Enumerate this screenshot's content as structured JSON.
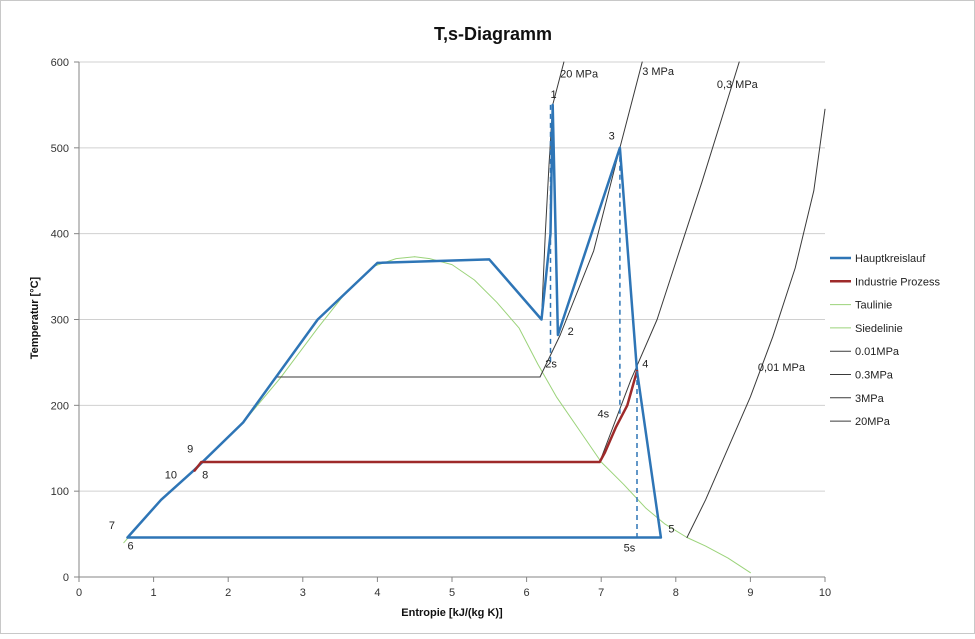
{
  "chart_data": {
    "type": "line",
    "title": "T,s-Diagramm",
    "xlabel": "Entropie [kJ/(kg K)]",
    "ylabel": "Temperatur [°C]",
    "xlim": [
      0,
      10
    ],
    "ylim": [
      0,
      600
    ],
    "xticks": [
      0,
      1,
      2,
      3,
      4,
      5,
      6,
      7,
      8,
      9,
      10
    ],
    "yticks": [
      0,
      100,
      200,
      300,
      400,
      500,
      600
    ],
    "grid": "horizontal",
    "legend_position": "right",
    "colors": {
      "hauptkreislauf": "#2e75b6",
      "industrie": "#9e2a2a",
      "sattigung": "#9bd37a",
      "isobar": "#3a3a3a",
      "isobar_navy": "#1f3f6e"
    },
    "series": [
      {
        "name": "Hauptkreislauf",
        "color": "#2e75b6",
        "width": 2.5,
        "segments": [
          [
            [
              0.65,
              46
            ],
            [
              7.8,
              46
            ],
            [
              7.48,
              240
            ],
            [
              7.25,
              500
            ],
            [
              6.42,
              282
            ],
            [
              6.35,
              550
            ],
            [
              6.32,
              400
            ],
            [
              6.2,
              300
            ],
            [
              5.5,
              370
            ],
            [
              4.0,
              366
            ],
            [
              3.2,
              300
            ],
            [
              2.2,
              180
            ],
            [
              1.55,
              125
            ],
            [
              1.1,
              90
            ],
            [
              0.65,
              46
            ]
          ]
        ]
      },
      {
        "name": "Industrie Prozess",
        "color": "#9e2a2a",
        "width": 2.5,
        "segments": [
          [
            [
              7.48,
              240
            ],
            [
              7.35,
              200
            ],
            [
              7.2,
              175
            ],
            [
              7.05,
              145
            ],
            [
              6.98,
              134
            ],
            [
              1.64,
              134
            ],
            [
              1.55,
              124
            ]
          ]
        ]
      },
      {
        "name": "Taulinie",
        "color": "#9bd37a",
        "width": 1,
        "segments": [
          [
            [
              4.5,
              373
            ],
            [
              4.7,
              371
            ],
            [
              5.0,
              364
            ],
            [
              5.3,
              346
            ],
            [
              5.6,
              320
            ],
            [
              5.9,
              290
            ],
            [
              6.15,
              248
            ],
            [
              6.4,
              210
            ],
            [
              6.7,
              172
            ],
            [
              7.0,
              134
            ],
            [
              7.3,
              108
            ],
            [
              7.6,
              80
            ],
            [
              7.85,
              62
            ],
            [
              8.15,
              46
            ],
            [
              8.4,
              36
            ],
            [
              8.7,
              22
            ],
            [
              9.0,
              5
            ]
          ]
        ]
      },
      {
        "name": "Siedelinie",
        "color": "#9bd37a",
        "width": 1,
        "segments": [
          [
            [
              0.6,
              40
            ],
            [
              1.1,
              90
            ],
            [
              1.6,
              130
            ],
            [
              2.2,
              180
            ],
            [
              2.7,
              232
            ],
            [
              3.2,
              290
            ],
            [
              3.6,
              334
            ],
            [
              3.95,
              362
            ],
            [
              4.25,
              371
            ],
            [
              4.5,
              373
            ]
          ]
        ]
      },
      {
        "name": "0.01MPa",
        "color": "#3a3a3a",
        "width": 1,
        "segments": [
          [
            [
              8.15,
              46
            ],
            [
              8.4,
              90
            ],
            [
              8.7,
              150
            ],
            [
              9.0,
              210
            ],
            [
              9.3,
              280
            ],
            [
              9.6,
              360
            ],
            [
              9.85,
              450
            ],
            [
              10.0,
              545
            ]
          ]
        ]
      },
      {
        "name": "0.3MPa",
        "color": "#3a3a3a",
        "width": 1,
        "segments": [
          [
            [
              6.98,
              134
            ],
            [
              7.4,
              230
            ],
            [
              7.75,
              300
            ],
            [
              8.05,
              380
            ],
            [
              8.35,
              460
            ],
            [
              8.6,
              530
            ],
            [
              8.85,
              600
            ]
          ]
        ]
      },
      {
        "name": "3MPa",
        "color": "#3a3a3a",
        "width": 1,
        "segments": [
          [
            [
              2.65,
              233
            ],
            [
              6.18,
              233
            ]
          ],
          [
            [
              6.18,
              233
            ],
            [
              6.45,
              282
            ],
            [
              6.9,
              380
            ],
            [
              7.25,
              500
            ],
            [
              7.55,
              600
            ]
          ]
        ]
      },
      {
        "name": "20MPa",
        "color": "#3a3a3a",
        "width": 1,
        "segments": [
          [
            [
              6.2,
              300
            ],
            [
              6.25,
              400
            ],
            [
              6.3,
              480
            ],
            [
              6.35,
              550
            ],
            [
              6.5,
              600
            ]
          ]
        ]
      }
    ],
    "dashed_lines": [
      {
        "color": "#2e75b6",
        "points": [
          [
            6.32,
            550
          ],
          [
            6.32,
            247
          ]
        ]
      },
      {
        "color": "#2e75b6",
        "points": [
          [
            7.25,
            500
          ],
          [
            7.25,
            190
          ]
        ]
      },
      {
        "color": "#2e75b6",
        "points": [
          [
            7.48,
            240
          ],
          [
            7.48,
            46
          ]
        ]
      }
    ],
    "annotations": [
      {
        "text": "1",
        "x": 6.32,
        "y": 558
      },
      {
        "text": "2",
        "x": 6.55,
        "y": 282
      },
      {
        "text": "2s",
        "x": 6.25,
        "y": 244
      },
      {
        "text": "3",
        "x": 7.1,
        "y": 510
      },
      {
        "text": "4",
        "x": 7.55,
        "y": 244
      },
      {
        "text": "4s",
        "x": 6.95,
        "y": 186
      },
      {
        "text": "5",
        "x": 7.9,
        "y": 52
      },
      {
        "text": "5s",
        "x": 7.3,
        "y": 30
      },
      {
        "text": "6",
        "x": 0.65,
        "y": 32
      },
      {
        "text": "7",
        "x": 0.4,
        "y": 56
      },
      {
        "text": "8",
        "x": 1.65,
        "y": 115
      },
      {
        "text": "9",
        "x": 1.45,
        "y": 145
      },
      {
        "text": "10",
        "x": 1.15,
        "y": 115
      },
      {
        "text": "20 MPa",
        "x": 6.45,
        "y": 582
      },
      {
        "text": "3 MPa",
        "x": 7.55,
        "y": 585
      },
      {
        "text": "0,3 MPa",
        "x": 8.55,
        "y": 570
      },
      {
        "text": "0,01 MPa",
        "x": 9.1,
        "y": 240
      }
    ],
    "legend": [
      {
        "label": "Hauptkreislauf",
        "color": "#2e75b6",
        "width": 2.5
      },
      {
        "label": "Industrie Prozess",
        "color": "#9e2a2a",
        "width": 2.5
      },
      {
        "label": "Taulinie",
        "color": "#9bd37a",
        "width": 1
      },
      {
        "label": "Siedelinie",
        "color": "#9bd37a",
        "width": 1
      },
      {
        "label": "0.01MPa",
        "color": "#3a3a3a",
        "width": 1
      },
      {
        "label": "0.3MPa",
        "color": "#3a3a3a",
        "width": 1
      },
      {
        "label": "3MPa",
        "color": "#3a3a3a",
        "width": 1
      },
      {
        "label": "20MPa",
        "color": "#3a3a3a",
        "width": 1
      }
    ]
  }
}
